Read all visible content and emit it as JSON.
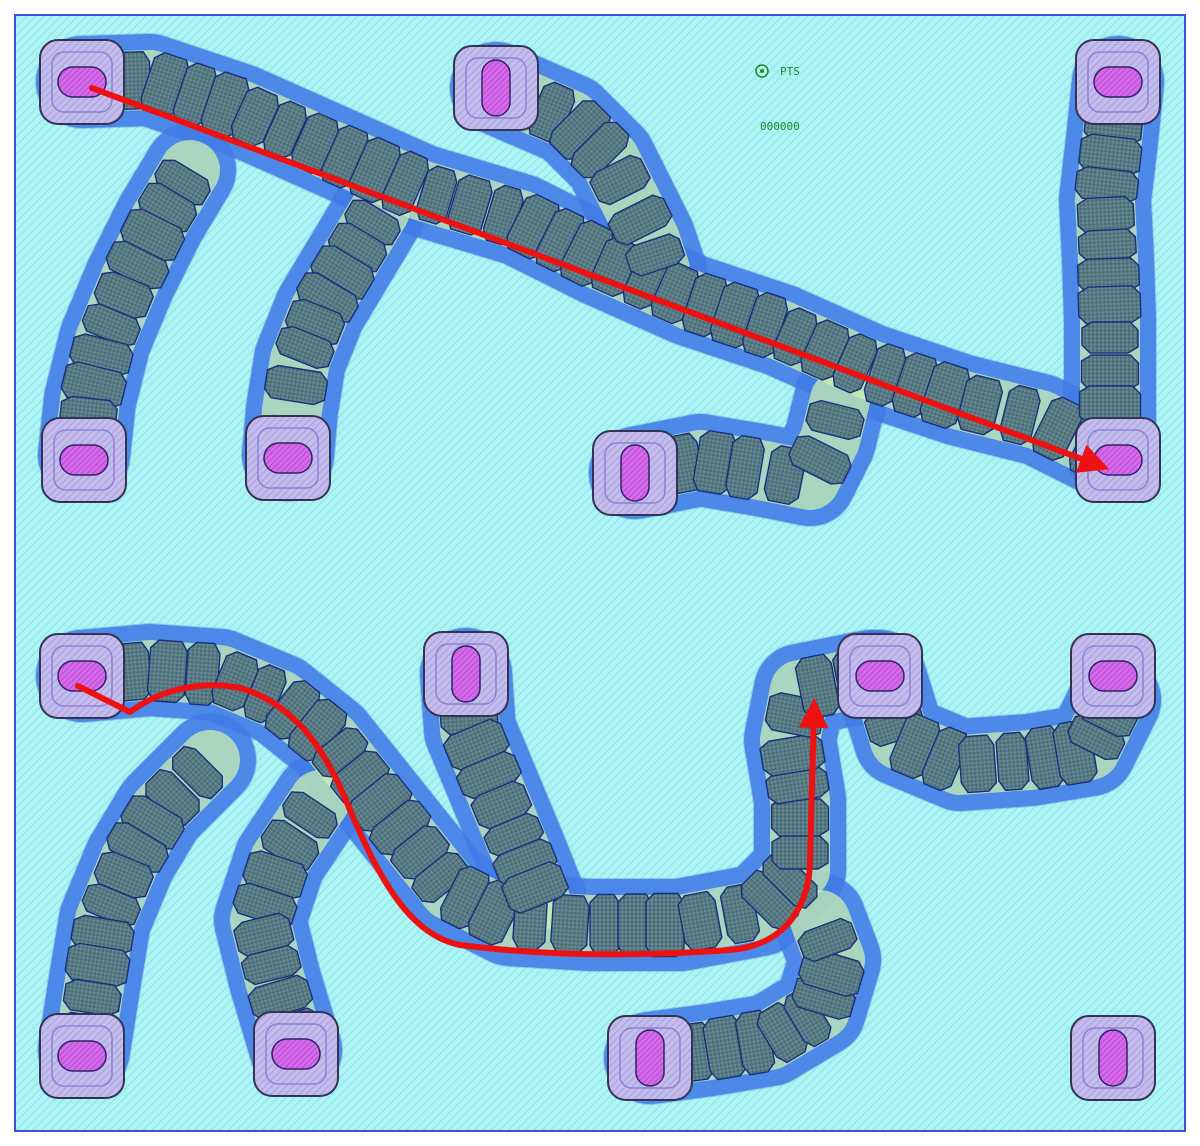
{
  "labels": {
    "marker_text": "PTS",
    "id_text": "000000"
  },
  "colors": {
    "substrate": "#a9f3f3",
    "hatch": "#7ee0e6",
    "frame": "#3d4fd8",
    "pad_outer": "#b9b0e6",
    "pad_inner": "#d060e6",
    "link": "#4a86f0",
    "gap": "#c9efb0",
    "cell": "#56777f",
    "cell_edge": "#1a2e7a",
    "arrow": "#ee1111"
  },
  "icons": {
    "marker": "crosshair-circle-icon",
    "path_arrow": "arrow-icon"
  }
}
